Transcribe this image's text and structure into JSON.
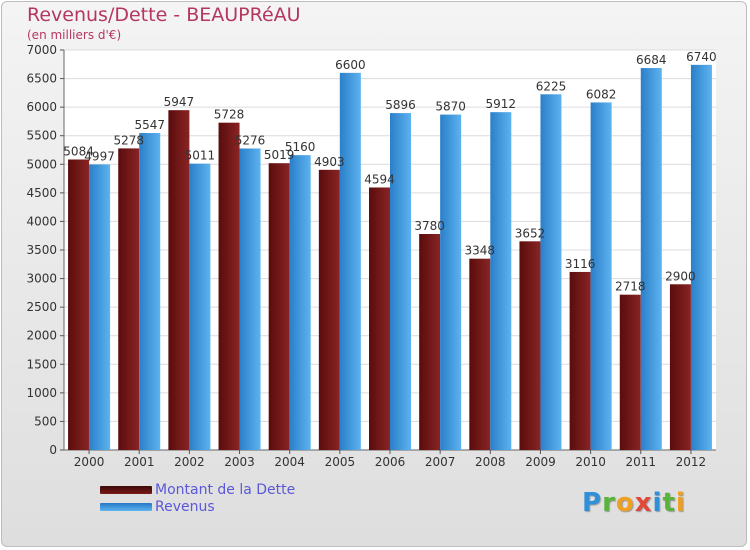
{
  "chart_data": {
    "type": "bar",
    "title": "Revenus/Dette - BEAUPRéAU",
    "subtitle": "(en milliers d'€)",
    "categories": [
      "2000",
      "2001",
      "2002",
      "2003",
      "2004",
      "2005",
      "2006",
      "2007",
      "2008",
      "2009",
      "2010",
      "2011",
      "2012"
    ],
    "series": [
      {
        "name": "Montant de la Dette",
        "color": "#7a1a1a",
        "values": [
          5084,
          5278,
          5947,
          5728,
          5019,
          4903,
          4594,
          3780,
          3348,
          3652,
          3116,
          2718,
          2900
        ]
      },
      {
        "name": "Revenus",
        "color": "#3d9be0",
        "values": [
          4997,
          5547,
          5011,
          5276,
          5160,
          6600,
          5896,
          5870,
          5912,
          6225,
          6082,
          6684,
          6740
        ]
      }
    ],
    "ylim": [
      0,
      7000
    ],
    "yticks": [
      0,
      500,
      1000,
      1500,
      2000,
      2500,
      3000,
      3500,
      4000,
      4500,
      5000,
      5500,
      6000,
      6500,
      7000
    ],
    "grid": true,
    "legend_position": "bottom-left"
  },
  "logo": {
    "letters": [
      "P",
      "r",
      "o",
      "x",
      "i",
      "t",
      "i"
    ]
  }
}
